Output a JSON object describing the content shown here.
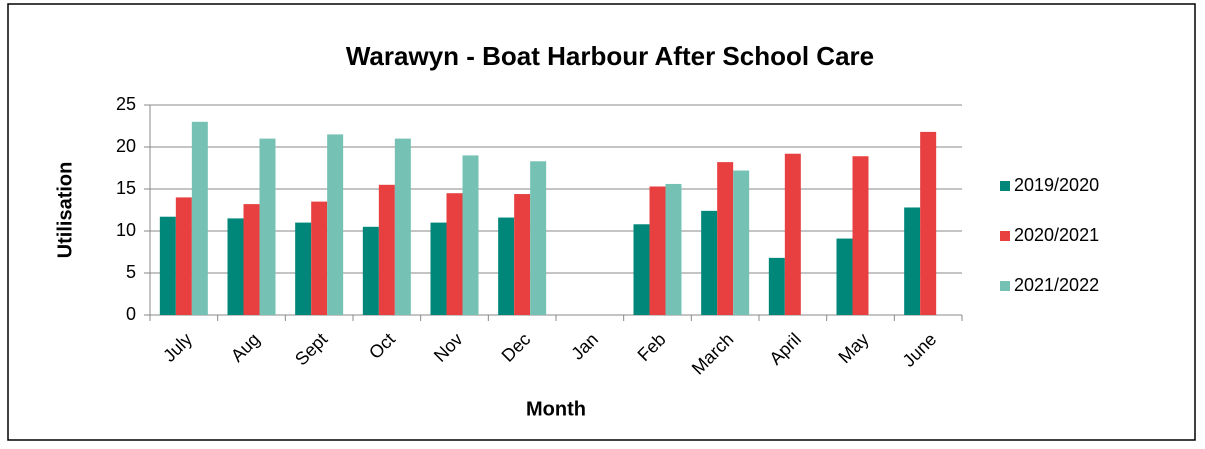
{
  "chart_data": {
    "type": "bar",
    "title": "Warawyn - Boat Harbour After School Care",
    "x_label": "Month",
    "y_label": "Utilisation",
    "categories": [
      "July",
      "Aug",
      "Sept",
      "Oct",
      "Nov",
      "Dec",
      "Jan",
      "Feb",
      "March",
      "April",
      "May",
      "June"
    ],
    "series": [
      {
        "name": "2019/2020",
        "color": "#00877a",
        "values": [
          11.7,
          11.5,
          11,
          10.5,
          11,
          11.6,
          null,
          10.8,
          12.4,
          6.8,
          9.1,
          12.8
        ]
      },
      {
        "name": "2020/2021",
        "color": "#e84040",
        "values": [
          14,
          13.2,
          13.5,
          15.5,
          14.5,
          14.4,
          null,
          15.3,
          18.2,
          19.2,
          18.9,
          21.8
        ]
      },
      {
        "name": "2021/2022",
        "color": "#75c2b4",
        "values": [
          23,
          21,
          21.5,
          21,
          19,
          18.3,
          null,
          15.6,
          17.2,
          null,
          null,
          null
        ]
      }
    ],
    "ylim": [
      0,
      25
    ],
    "yticks": [
      0,
      5,
      10,
      15,
      20,
      25
    ],
    "grid": true,
    "legend": "right"
  }
}
